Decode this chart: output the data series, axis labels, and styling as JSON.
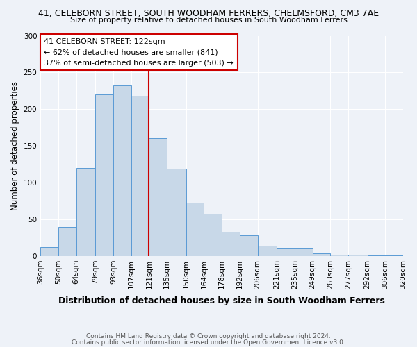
{
  "title": "41, CELEBORN STREET, SOUTH WOODHAM FERRERS, CHELMSFORD, CM3 7AE",
  "subtitle": "Size of property relative to detached houses in South Woodham Ferrers",
  "xlabel": "Distribution of detached houses by size in South Woodham Ferrers",
  "ylabel": "Number of detached properties",
  "bin_labels": [
    "36sqm",
    "50sqm",
    "64sqm",
    "79sqm",
    "93sqm",
    "107sqm",
    "121sqm",
    "135sqm",
    "150sqm",
    "164sqm",
    "178sqm",
    "192sqm",
    "206sqm",
    "221sqm",
    "235sqm",
    "249sqm",
    "263sqm",
    "277sqm",
    "292sqm",
    "306sqm",
    "320sqm"
  ],
  "bar_values": [
    12,
    40,
    120,
    220,
    232,
    218,
    161,
    119,
    73,
    58,
    33,
    28,
    14,
    10,
    10,
    4,
    2,
    2,
    1,
    1
  ],
  "bar_color": "#c8d8e8",
  "bar_edge_color": "#5b9bd5",
  "property_line_x_label": "121sqm",
  "property_line_color": "#cc0000",
  "annotation_title": "41 CELEBORN STREET: 122sqm",
  "annotation_line1": "← 62% of detached houses are smaller (841)",
  "annotation_line2": "37% of semi-detached houses are larger (503) →",
  "annotation_box_color": "#ffffff",
  "annotation_box_edge": "#cc0000",
  "ylim": [
    0,
    300
  ],
  "yticks": [
    0,
    50,
    100,
    150,
    200,
    250,
    300
  ],
  "footer1": "Contains HM Land Registry data © Crown copyright and database right 2024.",
  "footer2": "Contains public sector information licensed under the Open Government Licence v3.0.",
  "background_color": "#eef2f8",
  "plot_background": "#eef2f8",
  "grid_color": "#ffffff"
}
